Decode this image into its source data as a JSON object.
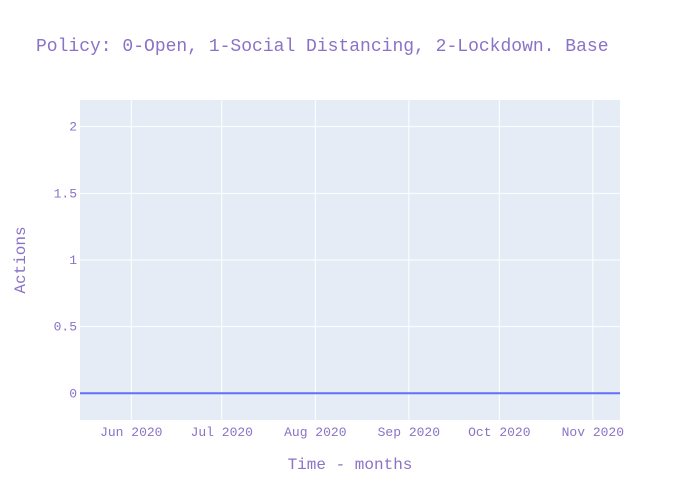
{
  "chart_data": {
    "type": "line",
    "title": "Policy: 0-Open, 1-Social Distancing, 2-Lockdown. Base",
    "xlabel": "Time - months",
    "ylabel": "Actions",
    "x_range": [
      "2020-05-15",
      "2020-11-10"
    ],
    "ylim": [
      -0.2,
      2.2
    ],
    "x_ticks": [
      {
        "date": "2020-06-01",
        "label": "Jun 2020"
      },
      {
        "date": "2020-07-01",
        "label": "Jul 2020"
      },
      {
        "date": "2020-08-01",
        "label": "Aug 2020"
      },
      {
        "date": "2020-09-01",
        "label": "Sep 2020"
      },
      {
        "date": "2020-10-01",
        "label": "Oct 2020"
      },
      {
        "date": "2020-11-01",
        "label": "Nov 2020"
      }
    ],
    "y_ticks": [
      {
        "value": 0,
        "label": "0"
      },
      {
        "value": 0.5,
        "label": "0.5"
      },
      {
        "value": 1,
        "label": "1"
      },
      {
        "value": 1.5,
        "label": "1.5"
      },
      {
        "value": 2,
        "label": "2"
      }
    ],
    "series": [
      {
        "color": "#636efa",
        "x": [
          "2020-05-15",
          "2020-11-10"
        ],
        "y": [
          0,
          0
        ]
      }
    ],
    "grid": true,
    "colors": {
      "plot_background": "#e5ecf6",
      "grid": "#ffffff",
      "text": "#8a72c6"
    }
  }
}
